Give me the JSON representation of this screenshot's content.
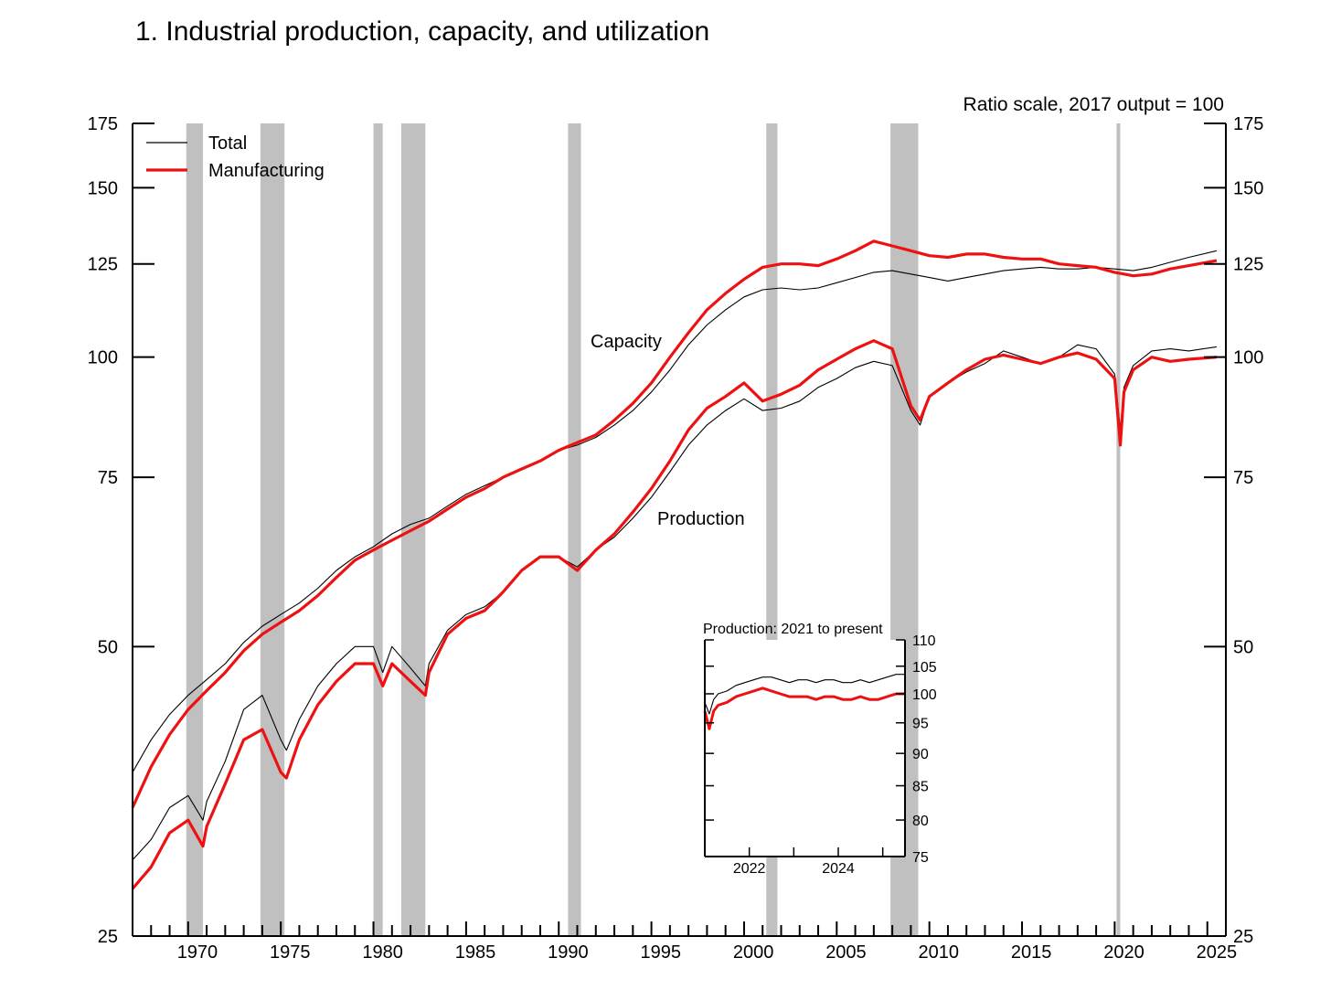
{
  "title": "1.  Industrial production, capacity, and utilization",
  "scale_note": "Ratio scale, 2017 output = 100",
  "colors": {
    "total": "#000000",
    "manufacturing": "#ee1111",
    "recession": "#c0c0c0"
  },
  "annotations": {
    "capacity": "Capacity",
    "production": "Production"
  },
  "chart_data": [
    {
      "type": "line",
      "title": "1.  Industrial production, capacity, and utilization",
      "subtitle": "Ratio scale, 2017 output = 100",
      "y_scale": "log",
      "ylim": [
        25,
        175
      ],
      "xlim": [
        1967,
        2026
      ],
      "y_ticks": [
        25,
        50,
        75,
        100,
        125,
        150,
        175
      ],
      "y_tick_labels": [
        "25",
        "50",
        "75",
        "100",
        "125",
        "150",
        "175"
      ],
      "x_ticks": [
        1970,
        1975,
        1980,
        1985,
        1990,
        1995,
        2000,
        2005,
        2010,
        2015,
        2020,
        2025
      ],
      "x_tick_labels": [
        "1970",
        "1975",
        "1980",
        "1985",
        "1990",
        "1995",
        "2000",
        "2005",
        "2010",
        "2015",
        "2020",
        "2025"
      ],
      "grid": false,
      "legend_position": "top-left",
      "legend": [
        "Total",
        "Manufacturing"
      ],
      "recessions": [
        [
          1969.9,
          1970.8
        ],
        [
          1973.9,
          1975.2
        ],
        [
          1980.0,
          1980.5
        ],
        [
          1981.5,
          1982.8
        ],
        [
          1990.5,
          1991.2
        ],
        [
          2001.2,
          2001.8
        ],
        [
          2007.9,
          2009.4
        ],
        [
          2020.1,
          2020.3
        ]
      ],
      "series": [
        {
          "name": "Total",
          "group": "Capacity",
          "x": [
            1967,
            1968,
            1969,
            1970,
            1971,
            1972,
            1973,
            1974,
            1975,
            1976,
            1977,
            1978,
            1979,
            1980,
            1981,
            1982,
            1983,
            1984,
            1985,
            1986,
            1987,
            1988,
            1989,
            1990,
            1991,
            1992,
            1993,
            1994,
            1995,
            1996,
            1997,
            1998,
            1999,
            2000,
            2001,
            2002,
            2003,
            2004,
            2005,
            2006,
            2007,
            2008,
            2009,
            2010,
            2011,
            2012,
            2013,
            2014,
            2015,
            2016,
            2017,
            2018,
            2019,
            2020,
            2021,
            2022,
            2023,
            2024,
            2025.5
          ],
          "values": [
            37,
            40,
            42.5,
            44.5,
            46.2,
            48,
            50.5,
            52.5,
            54,
            55.5,
            57.5,
            60,
            62,
            63.5,
            65.5,
            67,
            68,
            70,
            72,
            73.5,
            75,
            76.5,
            78,
            80,
            81,
            82.5,
            85,
            88,
            92,
            97,
            103,
            108,
            112,
            115.5,
            117.5,
            118,
            117.5,
            118,
            119.5,
            121,
            122.5,
            123,
            122,
            121,
            120,
            121,
            122,
            123,
            123.5,
            124,
            123.5,
            123.5,
            124,
            123.5,
            123,
            124,
            125.5,
            127,
            129
          ]
        },
        {
          "name": "Manufacturing",
          "group": "Capacity",
          "x": [
            1967,
            1968,
            1969,
            1970,
            1971,
            1972,
            1973,
            1974,
            1975,
            1976,
            1977,
            1978,
            1979,
            1980,
            1981,
            1982,
            1983,
            1984,
            1985,
            1986,
            1987,
            1988,
            1989,
            1990,
            1991,
            1992,
            1993,
            1994,
            1995,
            1996,
            1997,
            1998,
            1999,
            2000,
            2001,
            2002,
            2003,
            2004,
            2005,
            2006,
            2007,
            2008,
            2009,
            2010,
            2011,
            2012,
            2013,
            2014,
            2015,
            2016,
            2017,
            2018,
            2019,
            2020,
            2021,
            2022,
            2023,
            2024,
            2025.5
          ],
          "values": [
            34,
            37.5,
            40.5,
            43,
            45,
            47,
            49.5,
            51.5,
            53,
            54.5,
            56.5,
            59,
            61.5,
            63,
            64.5,
            66,
            67.5,
            69.5,
            71.5,
            73,
            75,
            76.5,
            78,
            80,
            81.5,
            83,
            86,
            89.5,
            94,
            100,
            106,
            112,
            116.5,
            120.5,
            124,
            125,
            125,
            124.5,
            126.5,
            129,
            132,
            130.5,
            129,
            127.5,
            127,
            128,
            128,
            127,
            126.5,
            126.5,
            125,
            124.5,
            124,
            122.5,
            121.5,
            122,
            123.5,
            124.5,
            126
          ]
        },
        {
          "name": "Total",
          "group": "Production",
          "x": [
            1967,
            1968,
            1969,
            1970,
            1970.8,
            1971,
            1972,
            1973,
            1974,
            1975,
            1975.3,
            1976,
            1977,
            1978,
            1979,
            1980,
            1980.5,
            1981,
            1982,
            1982.8,
            1983,
            1984,
            1985,
            1986,
            1987,
            1988,
            1989,
            1990,
            1991,
            1992,
            1993,
            1994,
            1995,
            1996,
            1997,
            1998,
            1999,
            2000,
            2001,
            2002,
            2003,
            2004,
            2005,
            2006,
            2007,
            2008,
            2009,
            2009.5,
            2010,
            2011,
            2012,
            2013,
            2014,
            2015,
            2016,
            2017,
            2018,
            2019,
            2020,
            2020.3,
            2020.5,
            2021,
            2022,
            2023,
            2024,
            2025.5
          ],
          "values": [
            30,
            31.5,
            34,
            35,
            33,
            34.5,
            38,
            43,
            44.5,
            40,
            39,
            42,
            45.5,
            48,
            50,
            50,
            47,
            50,
            47.5,
            45.5,
            48,
            52,
            54,
            55,
            57,
            60,
            62,
            62,
            60.5,
            63,
            65,
            68,
            71.5,
            76,
            81,
            85,
            88,
            90.5,
            88,
            88.5,
            90,
            93,
            95,
            97.5,
            99,
            98,
            88,
            85,
            91,
            94,
            96.5,
            98.5,
            101.5,
            100,
            98.5,
            100,
            103,
            102,
            96,
            84,
            93,
            98,
            101.5,
            102,
            101.5,
            102.5
          ]
        },
        {
          "name": "Manufacturing",
          "group": "Production",
          "x": [
            1967,
            1968,
            1969,
            1970,
            1970.8,
            1971,
            1972,
            1973,
            1974,
            1975,
            1975.3,
            1976,
            1977,
            1978,
            1979,
            1980,
            1980.5,
            1981,
            1982,
            1982.8,
            1983,
            1984,
            1985,
            1986,
            1987,
            1988,
            1989,
            1990,
            1991,
            1992,
            1993,
            1994,
            1995,
            1996,
            1997,
            1998,
            1999,
            2000,
            2001,
            2002,
            2003,
            2004,
            2005,
            2006,
            2007,
            2008,
            2009,
            2009.5,
            2010,
            2011,
            2012,
            2013,
            2014,
            2015,
            2016,
            2017,
            2018,
            2019,
            2020,
            2020.3,
            2020.5,
            2021,
            2022,
            2023,
            2024,
            2025.5
          ],
          "values": [
            28,
            29.5,
            32,
            33,
            31,
            32.5,
            36,
            40,
            41,
            37,
            36.5,
            40,
            43.5,
            46,
            48,
            48,
            45.5,
            48,
            46,
            44.5,
            47,
            51.5,
            53.5,
            54.5,
            57,
            60,
            62,
            62,
            60,
            63,
            65.5,
            69,
            73,
            78,
            84,
            88.5,
            91,
            94,
            90,
            91.5,
            93.5,
            97,
            99.5,
            102,
            104,
            102,
            89,
            86,
            91,
            94,
            97,
            99.5,
            100.5,
            99.5,
            98.5,
            100,
            101,
            99.5,
            95,
            81,
            92,
            97,
            100,
            99,
            99.5,
            100
          ]
        }
      ]
    },
    {
      "type": "line",
      "title": "Production: 2021 to present",
      "y_scale": "log",
      "ylim": [
        75,
        110
      ],
      "xlim": [
        2021,
        2025.5
      ],
      "y_ticks": [
        75,
        80,
        85,
        90,
        95,
        100,
        105,
        110
      ],
      "y_tick_labels": [
        "75",
        "80",
        "85",
        "90",
        "95",
        "100",
        "105",
        "110"
      ],
      "x_ticks": [
        2022,
        2024
      ],
      "x_tick_labels": [
        "2022",
        "2024"
      ],
      "series": [
        {
          "name": "Total",
          "x": [
            2021.0,
            2021.1,
            2021.2,
            2021.3,
            2021.5,
            2021.7,
            2021.9,
            2022.1,
            2022.3,
            2022.5,
            2022.7,
            2022.9,
            2023.1,
            2023.3,
            2023.5,
            2023.7,
            2023.9,
            2024.1,
            2024.3,
            2024.5,
            2024.7,
            2024.9,
            2025.1,
            2025.3,
            2025.5
          ],
          "values": [
            98.5,
            96.5,
            99,
            100,
            100.5,
            101.5,
            102,
            102.5,
            103,
            103,
            102.5,
            102,
            102.5,
            102.5,
            102,
            102.5,
            102.5,
            102,
            102,
            102.5,
            102,
            102.5,
            103,
            103.5,
            103.5
          ]
        },
        {
          "name": "Manufacturing",
          "x": [
            2021.0,
            2021.1,
            2021.2,
            2021.3,
            2021.5,
            2021.7,
            2021.9,
            2022.1,
            2022.3,
            2022.5,
            2022.7,
            2022.9,
            2023.1,
            2023.3,
            2023.5,
            2023.7,
            2023.9,
            2024.1,
            2024.3,
            2024.5,
            2024.7,
            2024.9,
            2025.1,
            2025.3,
            2025.5
          ],
          "values": [
            97,
            94,
            97,
            98,
            98.5,
            99.5,
            100,
            100.5,
            101,
            100.5,
            100,
            99.5,
            99.5,
            99.5,
            99,
            99.5,
            99.5,
            99,
            99,
            99.5,
            99,
            99,
            99.5,
            100,
            100
          ]
        }
      ]
    }
  ]
}
